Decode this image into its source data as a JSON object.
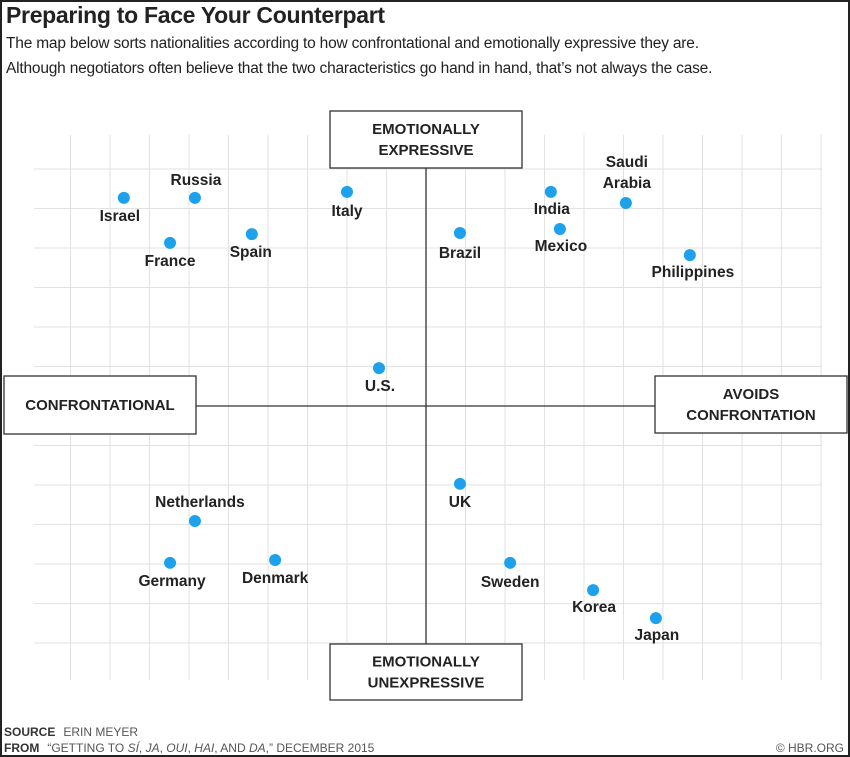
{
  "title": "Preparing to Face Your Counterpart",
  "subtitle_lines": [
    "The map below sorts nationalities according to how confrontational and emotionally expressive they are.",
    "Although negotiators often believe that the two characteristics go hand in hand, that’s not always the case."
  ],
  "chart_data": {
    "type": "scatter",
    "grid": true,
    "xlim": [
      -10,
      10
    ],
    "ylim": [
      -7,
      7
    ],
    "axis_labels": {
      "top": [
        "EMOTIONALLY",
        "EXPRESSIVE"
      ],
      "bottom": [
        "EMOTIONALLY",
        "UNEXPRESSIVE"
      ],
      "left": [
        "CONFRONTATIONAL"
      ],
      "right": [
        "AVOIDS",
        "CONFRONTATION"
      ]
    },
    "point_color": "#1ea1ec",
    "points": [
      {
        "label": [
          "Israel"
        ],
        "x": -7.65,
        "y": 5.27
      },
      {
        "label": [
          "Russia"
        ],
        "x": -5.85,
        "y": 5.27
      },
      {
        "label": [
          "France"
        ],
        "x": -6.48,
        "y": 4.13
      },
      {
        "label": [
          "Spain"
        ],
        "x": -4.41,
        "y": 4.35
      },
      {
        "label": [
          "Italy"
        ],
        "x": -2.0,
        "y": 5.42
      },
      {
        "label": [
          "U.S."
        ],
        "x": -1.19,
        "y": 0.96
      },
      {
        "label": [
          "Brazil"
        ],
        "x": 0.86,
        "y": 4.38
      },
      {
        "label": [
          "India"
        ],
        "x": 3.16,
        "y": 5.42
      },
      {
        "label": [
          "Mexico"
        ],
        "x": 3.39,
        "y": 4.48
      },
      {
        "label": [
          "Saudi",
          "Arabia"
        ],
        "x": 5.06,
        "y": 5.14
      },
      {
        "label": [
          "Philippines"
        ],
        "x": 6.68,
        "y": 3.82
      },
      {
        "label": [
          "UK"
        ],
        "x": 0.86,
        "y": -1.97
      },
      {
        "label": [
          "Netherlands"
        ],
        "x": -5.85,
        "y": -2.91
      },
      {
        "label": [
          "Germany"
        ],
        "x": -6.48,
        "y": -3.97
      },
      {
        "label": [
          "Denmark"
        ],
        "x": -3.82,
        "y": -3.9
      },
      {
        "label": [
          "Sweden"
        ],
        "x": 2.13,
        "y": -3.97
      },
      {
        "label": [
          "Korea"
        ],
        "x": 4.23,
        "y": -4.66
      },
      {
        "label": [
          "Japan"
        ],
        "x": 5.82,
        "y": -5.37
      }
    ]
  },
  "footer": {
    "source_label": "SOURCE",
    "source_value": "ERIN MEYER",
    "from_label": "FROM",
    "from_pre": "“GETTING TO ",
    "from_si": "SÍ",
    "from_c1": ", ",
    "from_ja": "JA",
    "from_c2": ", ",
    "from_oui": "OUI",
    "from_c3": ", ",
    "from_hai": "HAI",
    "from_and": ", AND ",
    "from_da": "DA",
    "from_post": ",” DECEMBER 2015",
    "copyright": "© HBR.ORG"
  }
}
